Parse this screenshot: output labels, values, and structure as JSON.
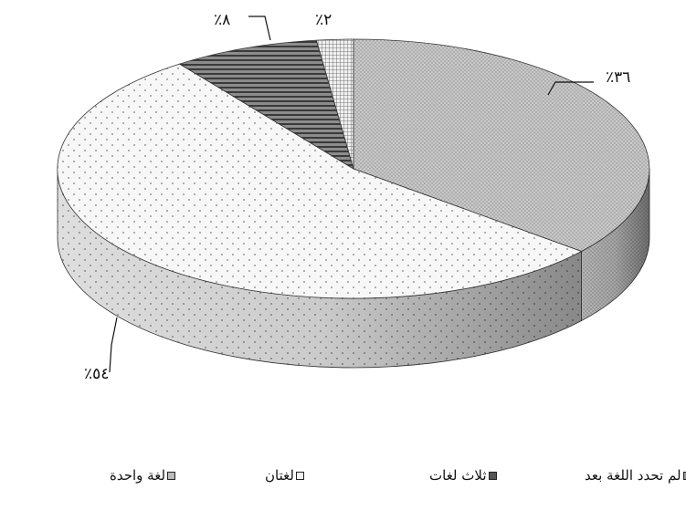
{
  "chart_data": {
    "type": "pie",
    "style": "3d",
    "labels": [
      "لغة واحدة",
      "لغتان",
      "ثلاث لغات",
      "لم تحدد اللغة بعد"
    ],
    "values": [
      36,
      54,
      8,
      2
    ],
    "value_labels": [
      "٪٣٦",
      "٪٥٤",
      "٪٨",
      "٪٢"
    ],
    "legend_position": "bottom",
    "colors": [
      "#b9b9b9",
      "#f3f3f3",
      "#6f6f6f",
      "#d9d9d9"
    ]
  }
}
